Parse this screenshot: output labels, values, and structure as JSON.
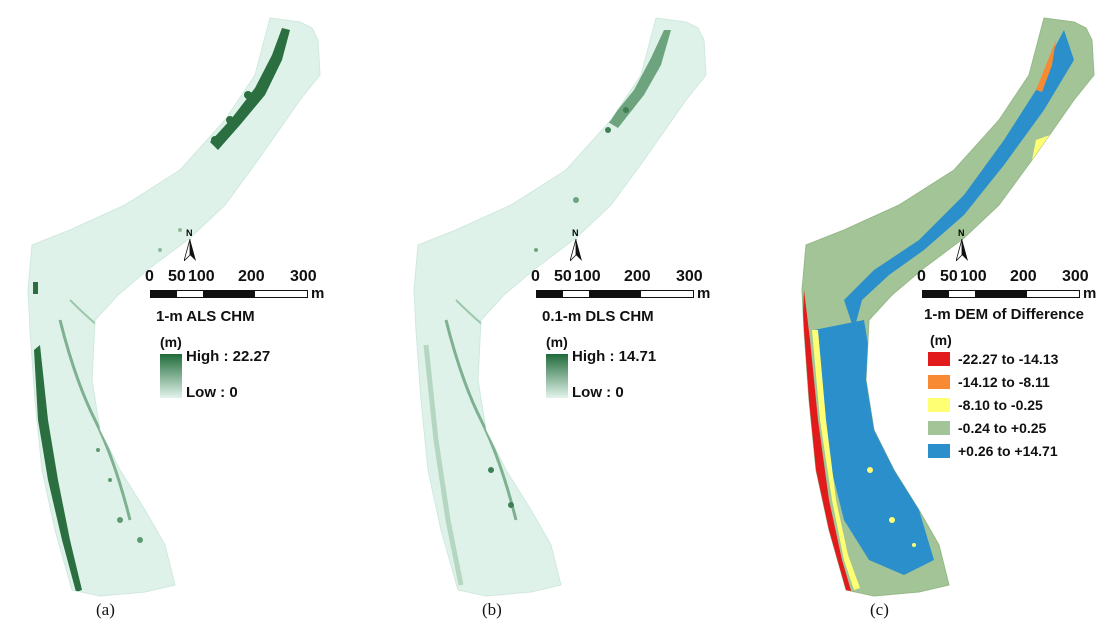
{
  "panels": [
    {
      "label": "(a)",
      "legend_title": "1-m ALS CHM",
      "unit": "(m)",
      "high_label": "High : 22.27",
      "low_label": "Low : 0",
      "ramp_colors": [
        "#1f6b3a",
        "#e3f4ec"
      ]
    },
    {
      "label": "(b)",
      "legend_title": "0.1-m DLS CHM",
      "unit": "(m)",
      "high_label": "High : 14.71",
      "low_label": "Low : 0",
      "ramp_colors": [
        "#1f6b3a",
        "#e3f4ec"
      ]
    },
    {
      "label": "(c)",
      "legend_title": "1-m DEM of Difference",
      "unit": "(m)",
      "classes": [
        {
          "label": "-22.27 to -14.13",
          "color": "#e31a1c"
        },
        {
          "label": "-14.12 to -8.11",
          "color": "#f78a33"
        },
        {
          "label": "-8.10 to -0.25",
          "color": "#ffff73"
        },
        {
          "label": "-0.24 to +0.25",
          "color": "#a3c496"
        },
        {
          "label": "+0.26 to +14.71",
          "color": "#2a8fcb"
        }
      ]
    }
  ],
  "scale_bar": {
    "ticks": [
      "0",
      "50",
      "100",
      "200",
      "300"
    ],
    "unit": "m"
  },
  "north_arrow": "N",
  "colors": {
    "chm_background": "#dff2ea",
    "chm_canopy": "#2b6e3f",
    "dod_background": "#a3c496",
    "dod_increase": "#2a8fcb"
  }
}
